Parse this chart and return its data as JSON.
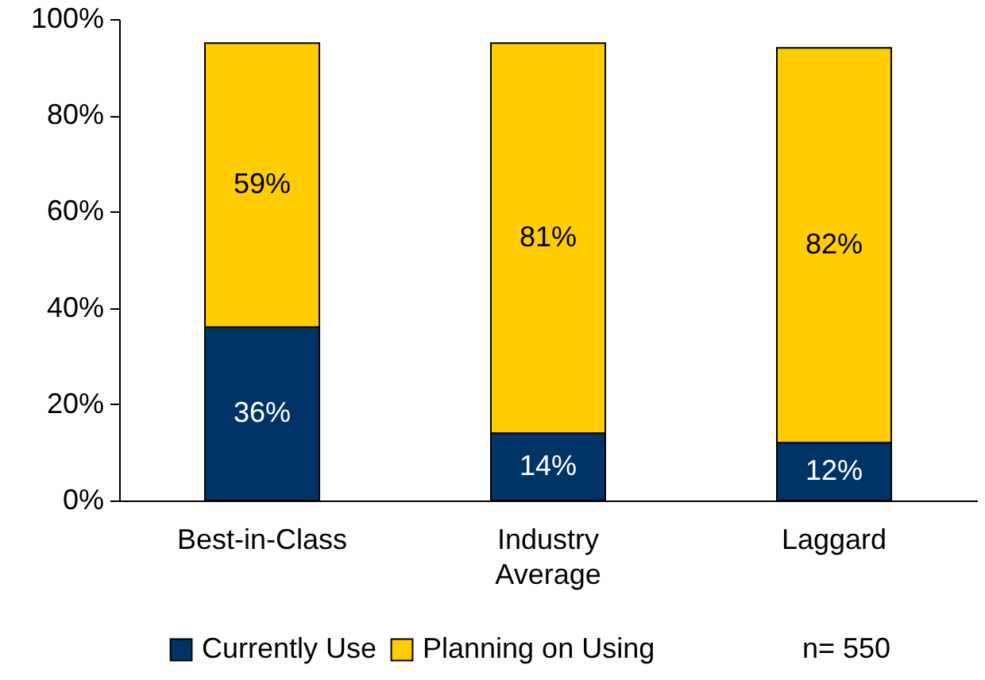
{
  "chart_data": {
    "type": "bar",
    "stacked": true,
    "categories": [
      "Best-in-Class",
      "Industry Average",
      "Laggard"
    ],
    "series": [
      {
        "name": "Currently Use",
        "color": "#003366",
        "values": [
          36,
          14,
          12
        ],
        "value_labels": [
          "36%",
          "14%",
          "12%"
        ]
      },
      {
        "name": "Planning on Using",
        "color": "#ffcc00",
        "values": [
          59,
          81,
          82
        ],
        "value_labels": [
          "59%",
          "81%",
          "82%"
        ]
      }
    ],
    "ylim": [
      0,
      100
    ],
    "yticks": [
      {
        "value": 0,
        "label": "0%"
      },
      {
        "value": 20,
        "label": "20%"
      },
      {
        "value": 40,
        "label": "40%"
      },
      {
        "value": 60,
        "label": "60%"
      },
      {
        "value": 80,
        "label": "80%"
      },
      {
        "value": 100,
        "label": "100%"
      }
    ],
    "grid": false,
    "legend": "bottom",
    "annotations": [
      "n= 550"
    ]
  }
}
